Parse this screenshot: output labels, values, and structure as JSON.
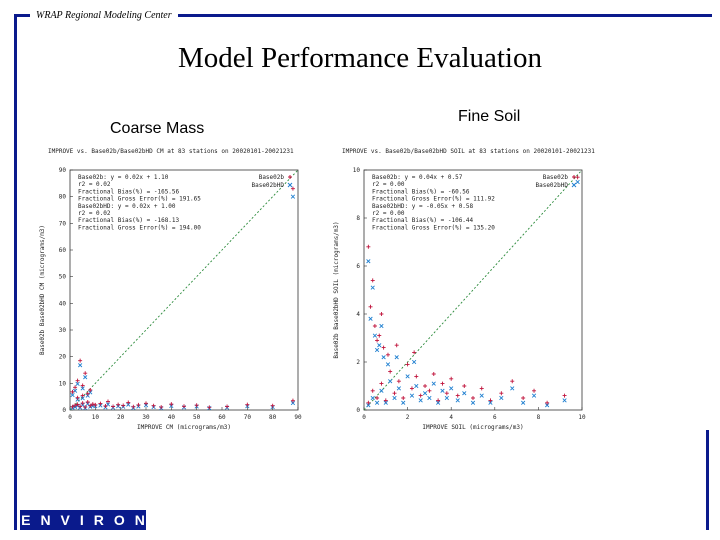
{
  "header": {
    "org_label": "WRAP Regional Modeling Center"
  },
  "slide": {
    "title": "Model Performance Evaluation"
  },
  "panels": {
    "left_title": "Coarse Mass",
    "right_title": "Fine Soil"
  },
  "logo": {
    "text": "ENVIRON"
  },
  "colors": {
    "frame": "#0a1a8c",
    "series_a": "#c0143c",
    "series_b": "#1e7fd0",
    "one_to_one": "#2a8a3a"
  },
  "chart_data": [
    {
      "type": "scatter",
      "title": "IMPROVE vs. Base02b/Base02bHD CM at 83 stations on 20020101-20021231",
      "xlabel": "IMPROVE CM (micrograms/m3)",
      "ylabel": "Base02b Base02bHD CM (micrograms/m3)",
      "xlim": [
        0,
        90
      ],
      "ylim": [
        0,
        90
      ],
      "xticks": [
        0,
        10,
        20,
        30,
        40,
        50,
        60,
        70,
        80,
        90
      ],
      "yticks": [
        0,
        10,
        20,
        30,
        40,
        50,
        60,
        70,
        80,
        90
      ],
      "legend": [
        "Base02b",
        "Base02bHD"
      ],
      "stats": [
        "Base02b:    y = 0.02x + 1.10",
        "  r2 = 0.02",
        "  Fractional Bias(%) = -165.56",
        "  Fractional Gross Error(%) = 191.65",
        "Base02bHD:  y = 0.02x + 1.00",
        "  r2 = 0.02",
        "  Fractional Bias(%) = -168.13",
        "  Fractional Gross Error(%) = 194.00"
      ],
      "series": [
        {
          "name": "Base02b",
          "points": [
            [
              1,
              1.2
            ],
            [
              2,
              1.8
            ],
            [
              3,
              2.1
            ],
            [
              4,
              1.4
            ],
            [
              5,
              2.6
            ],
            [
              6,
              1.1
            ],
            [
              7,
              3.0
            ],
            [
              8,
              1.6
            ],
            [
              9,
              2.2
            ],
            [
              10,
              1.9
            ],
            [
              12,
              2.4
            ],
            [
              14,
              1.5
            ],
            [
              15,
              3.2
            ],
            [
              17,
              1.3
            ],
            [
              19,
              2.0
            ],
            [
              21,
              1.7
            ],
            [
              23,
              2.8
            ],
            [
              25,
              1.2
            ],
            [
              27,
              1.9
            ],
            [
              30,
              2.5
            ],
            [
              33,
              1.6
            ],
            [
              36,
              1.1
            ],
            [
              40,
              2.2
            ],
            [
              45,
              1.4
            ],
            [
              50,
              1.8
            ],
            [
              55,
              1.0
            ],
            [
              62,
              1.3
            ],
            [
              70,
              2.0
            ],
            [
              80,
              1.6
            ],
            [
              88,
              3.5
            ],
            [
              2,
              8.5
            ],
            [
              3,
              11.0
            ],
            [
              4,
              18.5
            ],
            [
              5,
              9.2
            ],
            [
              6,
              13.8
            ],
            [
              7,
              6.1
            ],
            [
              1,
              6.8
            ],
            [
              8,
              7.5
            ],
            [
              3,
              4.6
            ],
            [
              5,
              5.4
            ],
            [
              88,
              83.0
            ]
          ]
        },
        {
          "name": "Base02bHD",
          "points": [
            [
              1,
              0.8
            ],
            [
              2,
              1.1
            ],
            [
              3,
              1.6
            ],
            [
              4,
              0.9
            ],
            [
              5,
              1.9
            ],
            [
              6,
              0.7
            ],
            [
              7,
              2.3
            ],
            [
              8,
              1.2
            ],
            [
              9,
              1.5
            ],
            [
              10,
              1.4
            ],
            [
              12,
              1.7
            ],
            [
              14,
              1.0
            ],
            [
              15,
              2.1
            ],
            [
              17,
              0.9
            ],
            [
              19,
              1.4
            ],
            [
              21,
              1.2
            ],
            [
              23,
              2.0
            ],
            [
              25,
              0.8
            ],
            [
              27,
              1.3
            ],
            [
              30,
              1.8
            ],
            [
              33,
              1.1
            ],
            [
              36,
              0.7
            ],
            [
              40,
              1.5
            ],
            [
              45,
              1.0
            ],
            [
              50,
              1.3
            ],
            [
              55,
              0.7
            ],
            [
              62,
              0.9
            ],
            [
              70,
              1.4
            ],
            [
              80,
              1.1
            ],
            [
              88,
              2.6
            ],
            [
              2,
              7.2
            ],
            [
              3,
              9.8
            ],
            [
              4,
              16.8
            ],
            [
              5,
              8.1
            ],
            [
              6,
              12.3
            ],
            [
              7,
              5.4
            ],
            [
              1,
              5.6
            ],
            [
              8,
              6.6
            ],
            [
              3,
              3.9
            ],
            [
              5,
              4.4
            ],
            [
              88,
              80.0
            ]
          ]
        }
      ]
    },
    {
      "type": "scatter",
      "title": "IMPROVE vs. Base02b/Base02bHD SOIL at 83 stations on 20020101-20021231",
      "xlabel": "IMPROVE SOIL (micrograms/m3)",
      "ylabel": "Base02b Base02bHD SOIL (micrograms/m3)",
      "xlim": [
        0,
        10
      ],
      "ylim": [
        0,
        10
      ],
      "xticks": [
        0,
        2,
        4,
        6,
        8,
        10
      ],
      "yticks": [
        0,
        2,
        4,
        6,
        8,
        10
      ],
      "legend": [
        "Base02b",
        "Base02bHD"
      ],
      "stats": [
        "Base02b:    y = 0.04x + 0.57",
        "  r2 = 0.00",
        "  Fractional Bias(%) = -60.56",
        "  Fractional Gross Error(%) = 111.92",
        "Base02bHD:  y = -0.05x + 0.58",
        "  r2 = 0.00",
        "  Fractional Bias(%) = -106.44",
        "  Fractional Gross Error(%) = 135.20"
      ],
      "series": [
        {
          "name": "Base02b",
          "points": [
            [
              0.2,
              0.3
            ],
            [
              0.4,
              0.8
            ],
            [
              0.6,
              0.5
            ],
            [
              0.8,
              1.1
            ],
            [
              1.0,
              0.4
            ],
            [
              1.2,
              1.6
            ],
            [
              1.4,
              0.7
            ],
            [
              1.6,
              1.2
            ],
            [
              1.8,
              0.5
            ],
            [
              2.0,
              1.9
            ],
            [
              2.2,
              0.9
            ],
            [
              2.4,
              1.4
            ],
            [
              2.6,
              0.6
            ],
            [
              2.8,
              1.0
            ],
            [
              3.0,
              0.8
            ],
            [
              3.2,
              1.5
            ],
            [
              3.4,
              0.4
            ],
            [
              3.6,
              1.1
            ],
            [
              3.8,
              0.7
            ],
            [
              4.0,
              1.3
            ],
            [
              4.3,
              0.6
            ],
            [
              4.6,
              1.0
            ],
            [
              5.0,
              0.5
            ],
            [
              5.4,
              0.9
            ],
            [
              5.8,
              0.4
            ],
            [
              6.3,
              0.7
            ],
            [
              6.8,
              1.2
            ],
            [
              7.3,
              0.5
            ],
            [
              7.8,
              0.8
            ],
            [
              8.4,
              0.3
            ],
            [
              9.2,
              0.6
            ],
            [
              0.3,
              4.3
            ],
            [
              0.5,
              3.5
            ],
            [
              0.4,
              5.4
            ],
            [
              0.7,
              3.1
            ],
            [
              0.9,
              2.6
            ],
            [
              1.1,
              2.3
            ],
            [
              0.2,
              6.8
            ],
            [
              0.6,
              2.9
            ],
            [
              1.5,
              2.7
            ],
            [
              2.3,
              2.4
            ],
            [
              0.8,
              4.0
            ],
            [
              9.8,
              9.7
            ]
          ]
        },
        {
          "name": "Base02bHD",
          "points": [
            [
              0.2,
              0.2
            ],
            [
              0.4,
              0.5
            ],
            [
              0.6,
              0.3
            ],
            [
              0.8,
              0.8
            ],
            [
              1.0,
              0.3
            ],
            [
              1.2,
              1.2
            ],
            [
              1.4,
              0.5
            ],
            [
              1.6,
              0.9
            ],
            [
              1.8,
              0.3
            ],
            [
              2.0,
              1.4
            ],
            [
              2.2,
              0.6
            ],
            [
              2.4,
              1.0
            ],
            [
              2.6,
              0.4
            ],
            [
              2.8,
              0.7
            ],
            [
              3.0,
              0.5
            ],
            [
              3.2,
              1.1
            ],
            [
              3.4,
              0.3
            ],
            [
              3.6,
              0.8
            ],
            [
              3.8,
              0.5
            ],
            [
              4.0,
              0.9
            ],
            [
              4.3,
              0.4
            ],
            [
              4.6,
              0.7
            ],
            [
              5.0,
              0.3
            ],
            [
              5.4,
              0.6
            ],
            [
              5.8,
              0.3
            ],
            [
              6.3,
              0.5
            ],
            [
              6.8,
              0.9
            ],
            [
              7.3,
              0.3
            ],
            [
              7.8,
              0.6
            ],
            [
              8.4,
              0.2
            ],
            [
              9.2,
              0.4
            ],
            [
              0.3,
              3.8
            ],
            [
              0.5,
              3.1
            ],
            [
              0.4,
              5.1
            ],
            [
              0.7,
              2.7
            ],
            [
              0.9,
              2.2
            ],
            [
              1.1,
              1.9
            ],
            [
              0.2,
              6.2
            ],
            [
              0.6,
              2.5
            ],
            [
              1.5,
              2.2
            ],
            [
              2.3,
              2.0
            ],
            [
              0.8,
              3.5
            ],
            [
              9.8,
              9.5
            ]
          ]
        }
      ]
    }
  ]
}
